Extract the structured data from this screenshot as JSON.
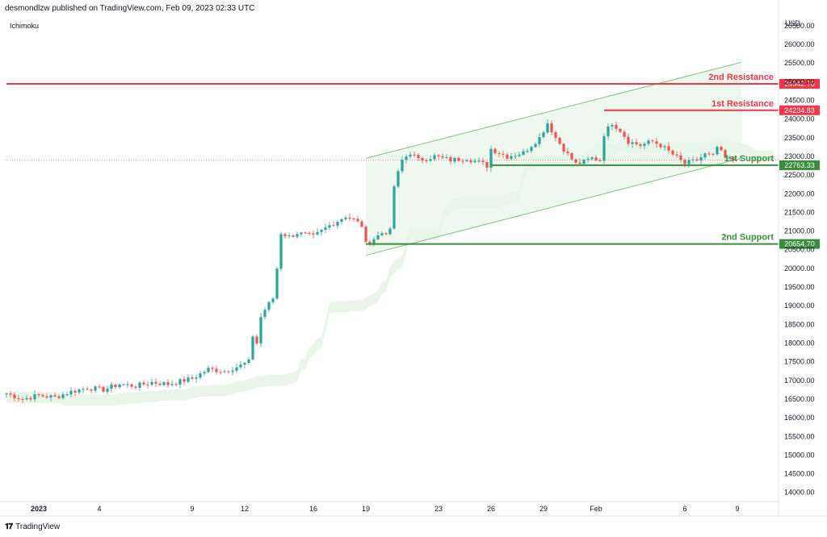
{
  "header": {
    "publisher": "desmondlzw published on TradingView.com, Feb 09, 2023 02:33 UTC"
  },
  "study_label": "Ichimoku",
  "footer": {
    "brand": "TradingView"
  },
  "chart_data": {
    "type": "candlestick",
    "title": "",
    "currency_label": "USD",
    "y_ticks": [
      14000,
      14500,
      15000,
      15500,
      16000,
      16500,
      17000,
      17500,
      18000,
      18500,
      19000,
      19500,
      20000,
      20500,
      21000,
      21500,
      22000,
      22500,
      23000,
      23500,
      24000,
      24500,
      25000,
      25500,
      26000,
      26500
    ],
    "y_tick_labels": [
      "14000.00",
      "14500.00",
      "15000.00",
      "15500.00",
      "16000.00",
      "16500.00",
      "17000.00",
      "17500.00",
      "18000.00",
      "18500.00",
      "19000.00",
      "19500.00",
      "20000.00",
      "20500.00",
      "21000.00",
      "21500.00",
      "22000.00",
      "22500.00",
      "23000.00",
      "23500.00",
      "24000.00",
      "24500.00",
      "25000.00",
      "25500.00",
      "26000.00",
      "26500.00"
    ],
    "ylim": [
      13800,
      26800
    ],
    "x_ticks": [
      {
        "label": "2023",
        "bold": true,
        "index": 8
      },
      {
        "label": "4",
        "index": 23
      },
      {
        "label": "9",
        "index": 46
      },
      {
        "label": "12",
        "index": 59
      },
      {
        "label": "16",
        "index": 76
      },
      {
        "label": "19",
        "index": 89
      },
      {
        "label": "23",
        "index": 107
      },
      {
        "label": "26",
        "index": 120
      },
      {
        "label": "29",
        "index": 133
      },
      {
        "label": "Feb",
        "index": 146
      },
      {
        "label": "6",
        "index": 168
      },
      {
        "label": "9",
        "index": 181
      }
    ],
    "bars_per_day": 4.3,
    "colors": {
      "up": "#26a69a",
      "down": "#ef5350",
      "resistance": "#f23645",
      "support": "#388e3c",
      "channel": "#81c784",
      "channel_fill": "#e8f5e9",
      "cloud": "#e6f4e6",
      "current": "#ef5350"
    },
    "anchors": [
      [
        0,
        16650
      ],
      [
        4,
        16500
      ],
      [
        8,
        16600
      ],
      [
        12,
        16550
      ],
      [
        16,
        16700
      ],
      [
        20,
        16800
      ],
      [
        24,
        16750
      ],
      [
        28,
        16900
      ],
      [
        32,
        16850
      ],
      [
        36,
        16950
      ],
      [
        40,
        16900
      ],
      [
        44,
        17000
      ],
      [
        46,
        17050
      ],
      [
        50,
        17300
      ],
      [
        54,
        17250
      ],
      [
        58,
        17400
      ],
      [
        60,
        17500
      ],
      [
        61,
        18200
      ],
      [
        62,
        18000
      ],
      [
        63,
        18700
      ],
      [
        64,
        18900
      ],
      [
        66,
        19200
      ],
      [
        67,
        20000
      ],
      [
        68,
        20950
      ],
      [
        70,
        20850
      ],
      [
        72,
        20950
      ],
      [
        76,
        20850
      ],
      [
        80,
        21150
      ],
      [
        84,
        21400
      ],
      [
        86,
        21300
      ],
      [
        88,
        21150
      ],
      [
        89,
        20650
      ],
      [
        91,
        20800
      ],
      [
        93,
        20950
      ],
      [
        95,
        21000
      ],
      [
        96,
        22200
      ],
      [
        98,
        22900
      ],
      [
        100,
        23100
      ],
      [
        102,
        22900
      ],
      [
        106,
        23000
      ],
      [
        110,
        22900
      ],
      [
        114,
        22950
      ],
      [
        118,
        22800
      ],
      [
        119,
        22750
      ],
      [
        120,
        23200
      ],
      [
        124,
        23000
      ],
      [
        128,
        23100
      ],
      [
        130,
        23300
      ],
      [
        132,
        23500
      ],
      [
        134,
        23900
      ],
      [
        136,
        23500
      ],
      [
        139,
        23050
      ],
      [
        141,
        22800
      ],
      [
        143,
        22850
      ],
      [
        145,
        22950
      ],
      [
        147,
        22900
      ],
      [
        148,
        23600
      ],
      [
        150,
        23900
      ],
      [
        152,
        23700
      ],
      [
        154,
        23400
      ],
      [
        157,
        23300
      ],
      [
        160,
        23400
      ],
      [
        162,
        23300
      ],
      [
        165,
        23050
      ],
      [
        168,
        22800
      ],
      [
        171,
        22900
      ],
      [
        173,
        23050
      ],
      [
        175,
        23000
      ],
      [
        176,
        23250
      ],
      [
        178,
        22950
      ],
      [
        180,
        22900
      ]
    ],
    "support_resistance": [
      {
        "label": "2nd Resistance",
        "value": 24942.7,
        "price_label": "24942.70",
        "from_index": 0,
        "color_key": "resistance"
      },
      {
        "label": "1st Resistance",
        "value": 24234.83,
        "price_label": "24234.83",
        "from_index": 148,
        "color_key": "resistance"
      },
      {
        "label": "1st Support",
        "value": 22763.33,
        "price_label": "22763.33",
        "from_index": 120,
        "color_key": "support"
      },
      {
        "label": "2nd Support",
        "value": 20654.7,
        "price_label": "20654.70",
        "from_index": 89,
        "color_key": "support"
      }
    ],
    "channel": {
      "upper": [
        [
          89,
          22950
        ],
        [
          182,
          25520
        ]
      ],
      "lower": [
        [
          89,
          20350
        ],
        [
          182,
          22950
        ]
      ]
    },
    "current_price": 22900,
    "annotations": [
      "2nd Resistance",
      "1st Resistance",
      "1st Support",
      "2nd Support"
    ]
  }
}
